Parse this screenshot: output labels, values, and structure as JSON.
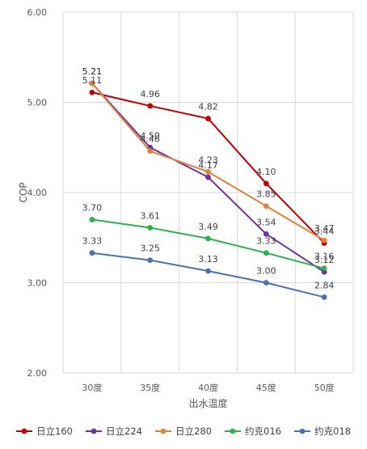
{
  "chart_data": {
    "type": "line",
    "categories": [
      "30度",
      "35度",
      "40度",
      "45度",
      "50度"
    ],
    "xlabel": "出水温度",
    "ylabel": "COP",
    "ylim": [
      2.0,
      6.0
    ],
    "yticks": [
      "2.00",
      "3.00",
      "4.00",
      "5.00",
      "6.00"
    ],
    "grid": true,
    "legend": "bottom",
    "series": [
      {
        "name": "日立160",
        "color": "#c00000",
        "values": [
          5.11,
          4.96,
          4.82,
          4.1,
          3.44
        ]
      },
      {
        "name": "日立224",
        "color": "#7030a0",
        "values": [
          5.21,
          4.5,
          4.17,
          3.54,
          3.12
        ]
      },
      {
        "name": "日立280",
        "color": "#e0823c",
        "values": [
          5.21,
          4.46,
          4.23,
          3.85,
          3.47
        ]
      },
      {
        "name": "约克016",
        "color": "#2cb24a",
        "values": [
          3.7,
          3.61,
          3.49,
          3.33,
          3.16
        ]
      },
      {
        "name": "约克018",
        "color": "#4a72b0",
        "values": [
          3.33,
          3.25,
          3.13,
          3.0,
          2.84
        ]
      }
    ]
  }
}
